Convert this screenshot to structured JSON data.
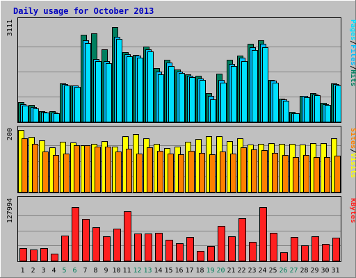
{
  "colors": {
    "background": "#c0c0c0",
    "title": "#0000c0",
    "hits": "#007f5f",
    "files": "#00bfff",
    "pages": "#00e0ff",
    "visits": "#ffff00",
    "sites": "#ff8000",
    "kbytes": "#ff2020",
    "weekend": "#00805c",
    "weekday": "#000000"
  },
  "chart_data": {
    "type": "bar",
    "title": "Daily usage for October 2013",
    "categories": [
      "1",
      "2",
      "3",
      "4",
      "5",
      "6",
      "7",
      "8",
      "9",
      "10",
      "11",
      "12",
      "13",
      "14",
      "15",
      "16",
      "17",
      "18",
      "19",
      "20",
      "21",
      "22",
      "23",
      "24",
      "25",
      "26",
      "27",
      "28",
      "29",
      "30",
      "31"
    ],
    "weekend_days": [
      "5",
      "6",
      "12",
      "13",
      "19",
      "20",
      "26",
      "27"
    ],
    "panels": [
      {
        "id": "top",
        "max_label": "3111",
        "ymax": 3111,
        "axis_label": {
          "parts": [
            "Pages",
            "/",
            "Files",
            "/",
            "Hits"
          ]
        },
        "series": [
          {
            "name": "Hits",
            "values": [
              600,
              510,
              330,
              320,
              1190,
              1130,
              2690,
              2740,
              2240,
              2930,
              2160,
              2070,
              2330,
              1660,
              1920,
              1620,
              1460,
              1430,
              890,
              1480,
              1920,
              2050,
              2410,
              2530,
              1290,
              710,
              300,
              810,
              890,
              580,
              1190
            ]
          },
          {
            "name": "Files",
            "values": [
              540,
              450,
              300,
              280,
              1170,
              1120,
              2520,
              1940,
              1880,
              2640,
              2100,
              2050,
              2250,
              1550,
              1830,
              1560,
              1420,
              1350,
              800,
              1290,
              1790,
              1990,
              2320,
              2410,
              1270,
              700,
              270,
              790,
              850,
              550,
              1170
            ]
          },
          {
            "name": "Pages",
            "values": [
              490,
              420,
              280,
              250,
              1130,
              1080,
              2450,
              1880,
              1820,
              2570,
              2030,
              1980,
              2190,
              1460,
              1720,
              1520,
              1380,
              1300,
              700,
              1220,
              1720,
              1890,
              2220,
              2320,
              1220,
              650,
              250,
              750,
              820,
              520,
              1120
            ]
          }
        ]
      },
      {
        "id": "middle",
        "max_label": "200",
        "ymax": 200,
        "axis_label": {
          "parts": [
            "Sites",
            "/",
            "Visits"
          ]
        },
        "series": [
          {
            "name": "Visits",
            "values": [
              200,
              178,
              167,
              144,
              162,
              160,
              150,
              156,
              164,
              146,
              179,
              186,
              174,
              156,
              142,
              147,
              162,
              170,
              179,
              180,
              164,
              174,
              152,
              154,
              158,
              154,
              154,
              152,
              157,
              158,
              173
            ]
          },
          {
            "name": "Sites",
            "values": [
              174,
              156,
              131,
              120,
              123,
              150,
              150,
              145,
              146,
              130,
              140,
              123,
              143,
              133,
              123,
              122,
              133,
              126,
              122,
              130,
              123,
              143,
              138,
              135,
              125,
              118,
              112,
              118,
              112,
              112,
              117
            ]
          }
        ]
      },
      {
        "id": "bottom",
        "max_label": "127994",
        "ymax": 127994,
        "axis_label": {
          "parts": [
            "KBytes"
          ]
        },
        "series": [
          {
            "name": "KBytes",
            "values": [
              26000,
              24000,
              26000,
              14000,
              53000,
              114000,
              88000,
              70000,
              51000,
              68000,
              105000,
              57000,
              58000,
              59000,
              44000,
              37000,
              50000,
              20000,
              31000,
              74000,
              51000,
              90000,
              40000,
              114000,
              59000,
              18000,
              50000,
              33000,
              51000,
              35000,
              48000
            ]
          }
        ]
      }
    ]
  }
}
